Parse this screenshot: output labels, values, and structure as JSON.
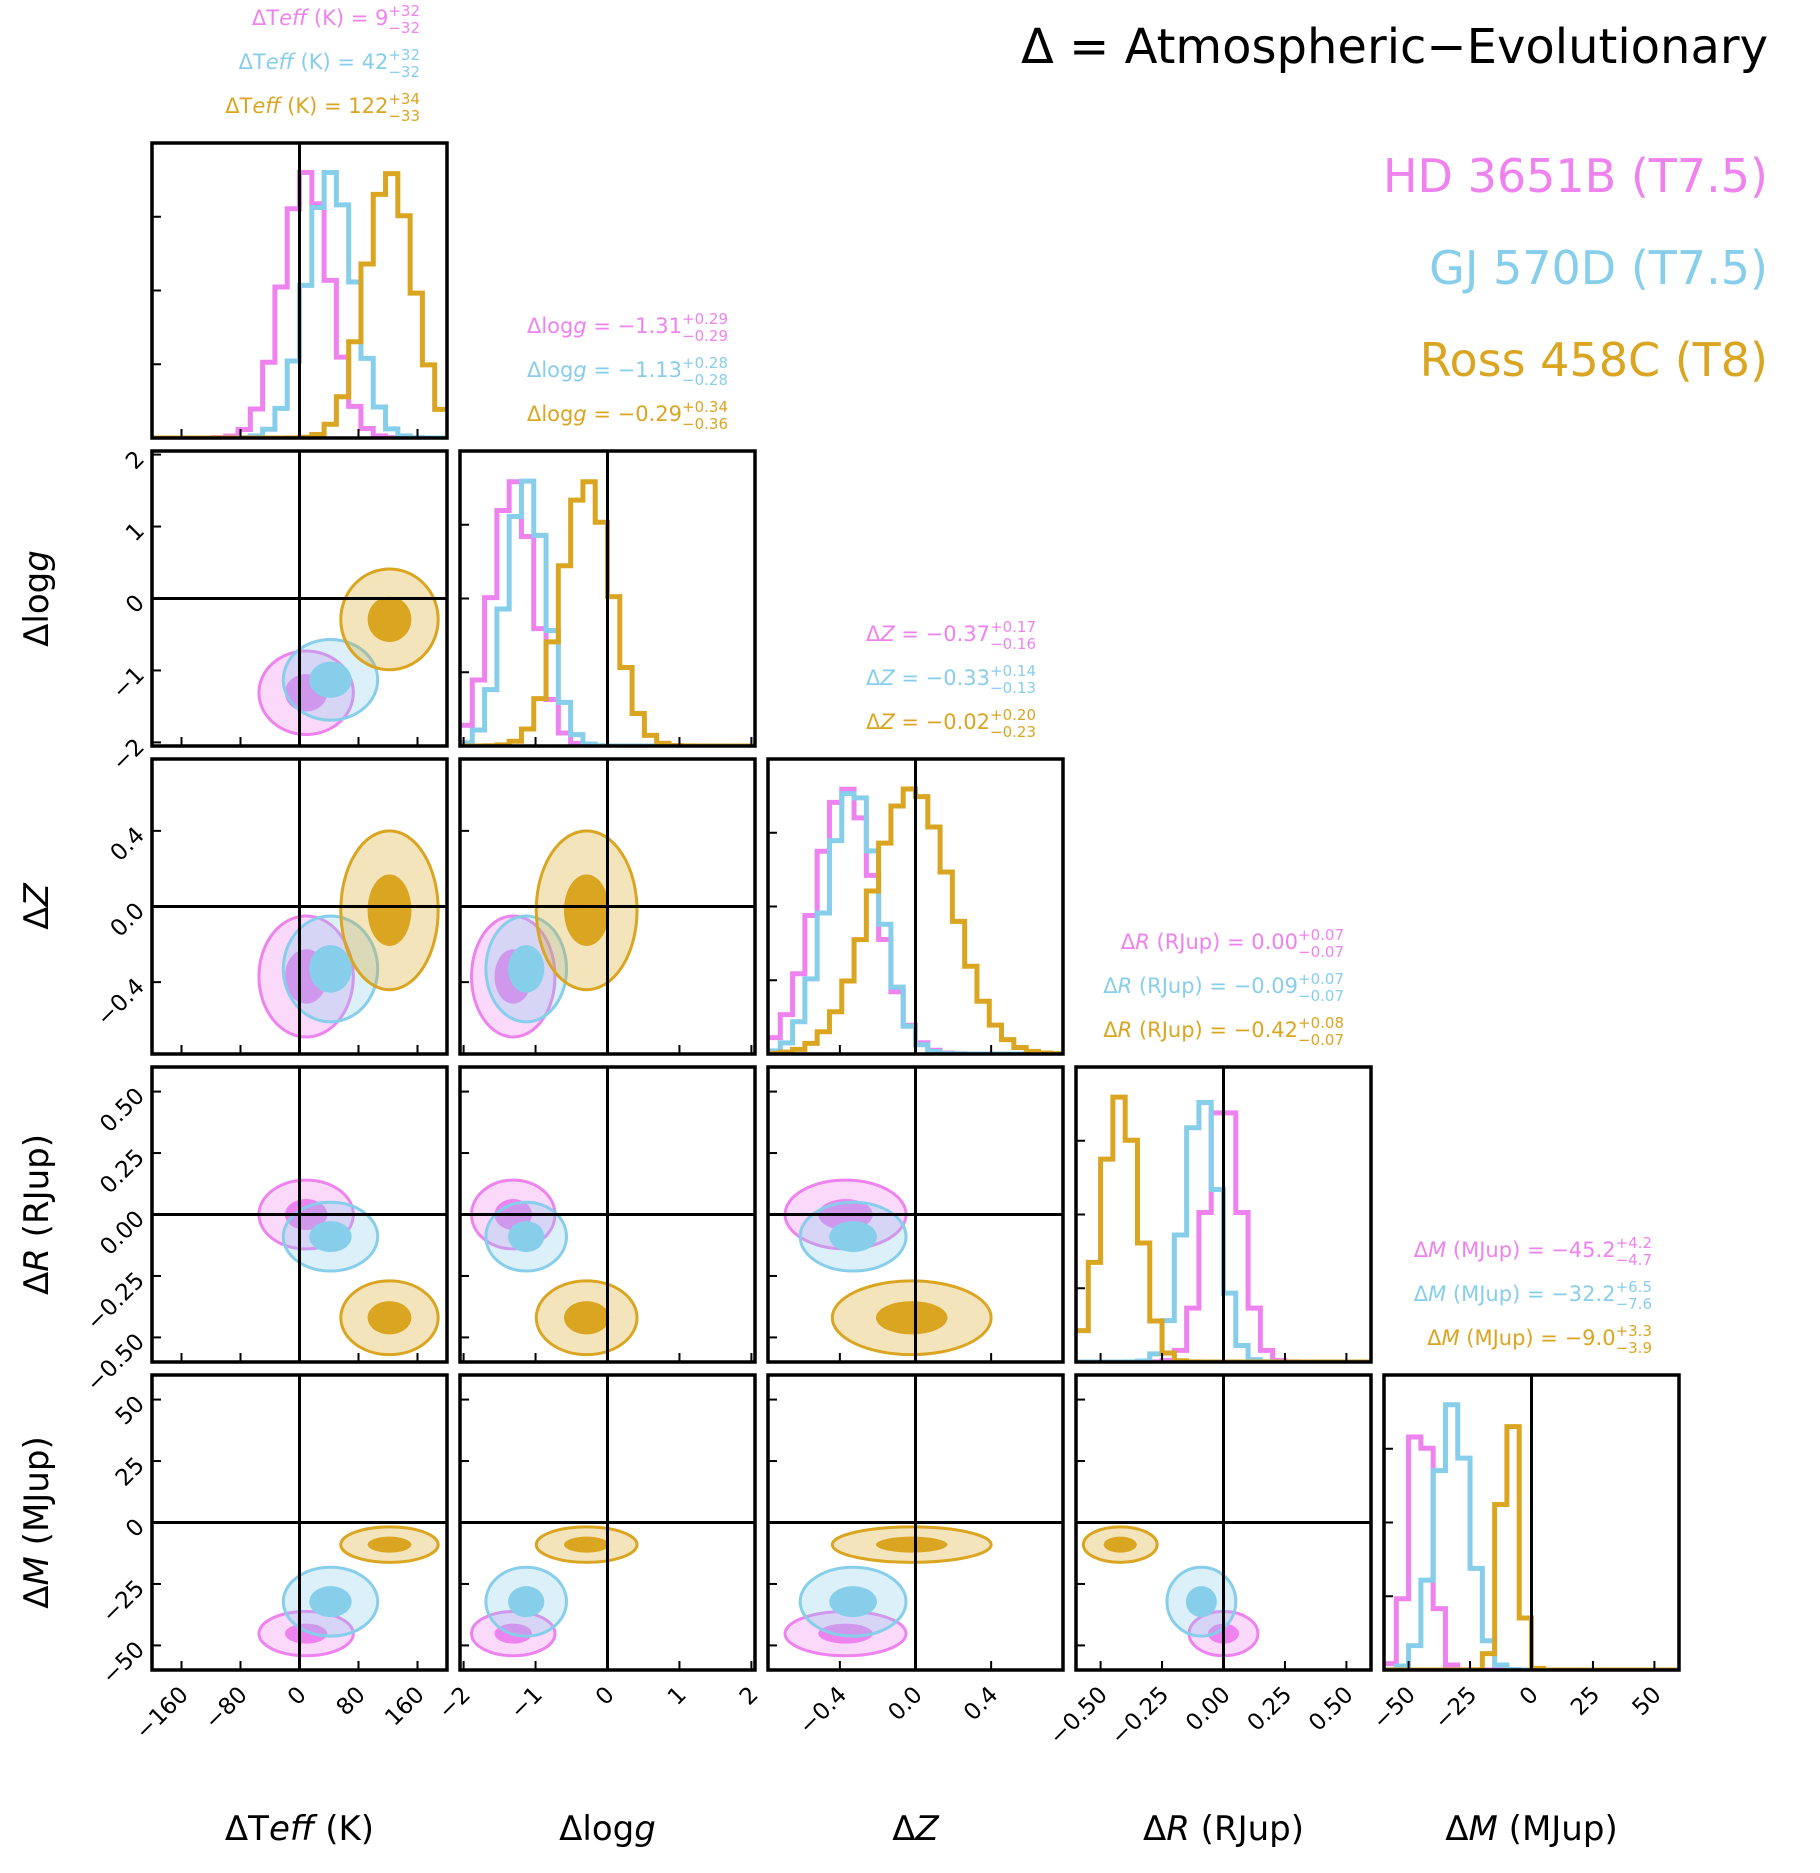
{
  "title": "Δ =  Atmospheric−Evolutionary",
  "chart_data": {
    "type": "corner",
    "parameters": [
      {
        "id": "teff",
        "label": "ΔT_eff (K)",
        "label_parts": [
          "ΔT",
          "eff",
          " (K)"
        ],
        "range": [
          -200,
          200
        ],
        "ticks": [
          -160,
          -80,
          0,
          80,
          160
        ],
        "tick_labels": [
          "−160",
          "−80",
          "0",
          "80",
          "160"
        ]
      },
      {
        "id": "logg",
        "label": "Δlogg",
        "label_parts": [
          "Δlog",
          "g",
          ""
        ],
        "range": [
          -2.05,
          2.05
        ],
        "ticks": [
          -2,
          -1,
          0,
          1,
          2
        ],
        "tick_labels": [
          "−2",
          "−1",
          "0",
          "1",
          "2"
        ]
      },
      {
        "id": "z",
        "label": "ΔZ",
        "label_parts": [
          "Δ",
          "Z",
          ""
        ],
        "range": [
          -0.78,
          0.78
        ],
        "ticks": [
          -0.4,
          0.0,
          0.4
        ],
        "tick_labels": [
          "−0.4",
          "0.0",
          "0.4"
        ]
      },
      {
        "id": "radius",
        "label": "ΔR (R_Jup)",
        "label_parts": [
          "Δ",
          "R",
          " (RJup)"
        ],
        "range": [
          -0.6,
          0.6
        ],
        "ticks": [
          -0.5,
          -0.25,
          0.0,
          0.25,
          0.5
        ],
        "tick_labels": [
          "−0.50",
          "−0.25",
          "0.00",
          "0.25",
          "0.50"
        ]
      },
      {
        "id": "mass",
        "label": "ΔM (M_Jup)",
        "label_parts": [
          "Δ",
          "M",
          " (MJup)"
        ],
        "range": [
          -60,
          60
        ],
        "ticks": [
          -50,
          -25,
          0,
          25,
          50
        ],
        "tick_labels": [
          "−50",
          "−25",
          "0",
          "25",
          "50"
        ]
      }
    ],
    "series": [
      {
        "name": "HD 3651B (T7.5)",
        "color": "#ee82ee",
        "means": [
          9,
          -1.31,
          -0.37,
          0.0,
          -45.2
        ],
        "sds": [
          32,
          0.29,
          0.16,
          0.07,
          4.5
        ],
        "stats": [
          {
            "median": "9",
            "upper": "+32",
            "lower": "−32"
          },
          {
            "median": "−1.31",
            "upper": "+0.29",
            "lower": "−0.29"
          },
          {
            "median": "−0.37",
            "upper": "+0.17",
            "lower": "−0.16"
          },
          {
            "median": "0.00",
            "upper": "+0.07",
            "lower": "−0.07"
          },
          {
            "median": "−45.2",
            "upper": "+4.2",
            "lower": "−4.7"
          }
        ]
      },
      {
        "name": "GJ 570D (T7.5)",
        "color": "#87ceeb",
        "means": [
          42,
          -1.13,
          -0.33,
          -0.09,
          -32.2
        ],
        "sds": [
          32,
          0.28,
          0.14,
          0.07,
          7
        ],
        "stats": [
          {
            "median": "42",
            "upper": "+32",
            "lower": "−32"
          },
          {
            "median": "−1.13",
            "upper": "+0.28",
            "lower": "−0.28"
          },
          {
            "median": "−0.33",
            "upper": "+0.14",
            "lower": "−0.13"
          },
          {
            "median": "−0.09",
            "upper": "+0.07",
            "lower": "−0.07"
          },
          {
            "median": "−32.2",
            "upper": "+6.5",
            "lower": "−7.6"
          }
        ]
      },
      {
        "name": "Ross 458C (T8)",
        "color": "#daa520",
        "means": [
          122,
          -0.29,
          -0.02,
          -0.42,
          -9.0
        ],
        "sds": [
          33,
          0.35,
          0.21,
          0.075,
          3.6
        ],
        "stats": [
          {
            "median": "122",
            "upper": "+34",
            "lower": "−33"
          },
          {
            "median": "−0.29",
            "upper": "+0.34",
            "lower": "−0.36"
          },
          {
            "median": "−0.02",
            "upper": "+0.20",
            "lower": "−0.23"
          },
          {
            "median": "−0.42",
            "upper": "+0.08",
            "lower": "−0.07"
          },
          {
            "median": "−9.0",
            "upper": "+3.3",
            "lower": "−3.9"
          }
        ]
      }
    ],
    "reference_value": 0,
    "grid": false
  }
}
